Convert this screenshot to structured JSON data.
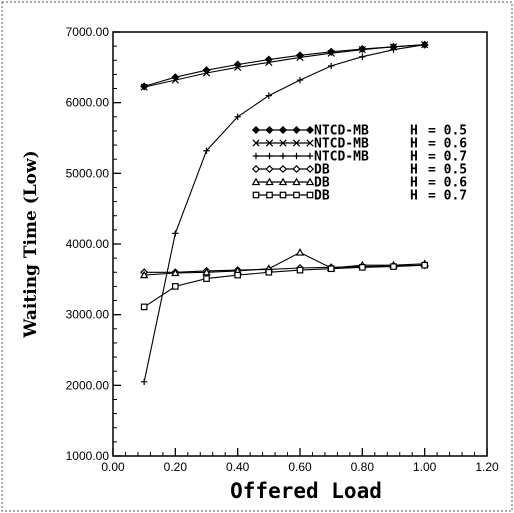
{
  "chart_data": {
    "type": "line",
    "xlabel": "Offered Load",
    "ylabel": "Waiting Time (Low)",
    "xlim": [
      0.0,
      1.2
    ],
    "ylim": [
      1000,
      7000
    ],
    "x_ticks": [
      "0.00",
      "0.20",
      "0.40",
      "0.60",
      "0.80",
      "1.00",
      "1.20"
    ],
    "y_ticks": [
      "1000.00",
      "2000.00",
      "3000.00",
      "4000.00",
      "5000.00",
      "6000.00",
      "7000.00"
    ],
    "grid": false,
    "legend_position": "middle-right",
    "x": [
      0.1,
      0.2,
      0.3,
      0.4,
      0.5,
      0.6,
      0.7,
      0.8,
      0.9,
      1.0
    ],
    "series": [
      {
        "name": "NTCD-MB",
        "h_label": "H",
        "h_value": "= 0.5",
        "marker": "diamond-filled",
        "values": [
          6230,
          6360,
          6460,
          6540,
          6610,
          6670,
          6720,
          6760,
          6790,
          6820
        ]
      },
      {
        "name": "NTCD-MB",
        "h_label": "H",
        "h_value": "= 0.6",
        "marker": "x",
        "values": [
          6220,
          6320,
          6420,
          6500,
          6570,
          6640,
          6700,
          6750,
          6790,
          6820
        ]
      },
      {
        "name": "NTCD-MB",
        "h_label": "H",
        "h_value": "= 0.7",
        "marker": "plus",
        "values": [
          2050,
          4150,
          5320,
          5800,
          6100,
          6320,
          6520,
          6650,
          6750,
          6820
        ]
      },
      {
        "name": "DB",
        "h_label": "H",
        "h_value": "= 0.5",
        "marker": "diamond-open",
        "values": [
          3600,
          3600,
          3620,
          3630,
          3640,
          3660,
          3670,
          3680,
          3690,
          3700
        ]
      },
      {
        "name": "DB",
        "h_label": "H",
        "h_value": "= 0.6",
        "marker": "triangle-open",
        "values": [
          3560,
          3590,
          3600,
          3620,
          3650,
          3880,
          3660,
          3700,
          3700,
          3720
        ]
      },
      {
        "name": "DB",
        "h_label": "H",
        "h_value": "= 0.7",
        "marker": "square-open",
        "values": [
          3110,
          3400,
          3510,
          3560,
          3600,
          3630,
          3650,
          3670,
          3680,
          3700
        ]
      }
    ]
  }
}
